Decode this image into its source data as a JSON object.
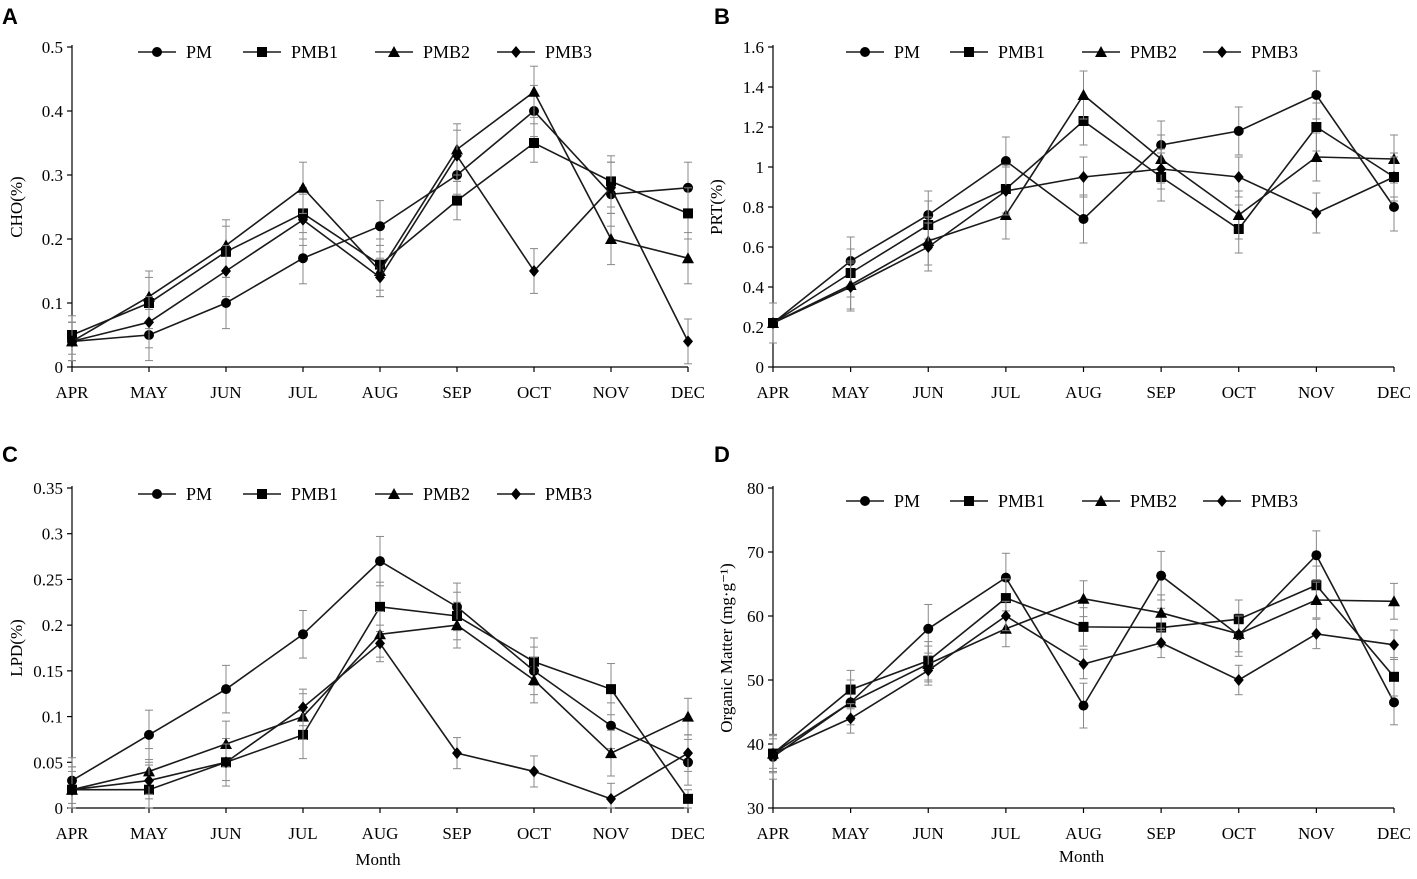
{
  "chart_data": [
    {
      "type": "line",
      "panel": "A",
      "title": "",
      "xlabel": "",
      "ylabel": "CHO(%)",
      "ylim": [
        0,
        0.5
      ],
      "yticks": [
        0,
        0.1,
        0.2,
        0.3,
        0.4,
        0.5
      ],
      "ytick_labels": [
        "0",
        "0.1",
        "0.2",
        "0.3",
        "0.4",
        "0.5"
      ],
      "categories": [
        "APR",
        "MAY",
        "JUN",
        "JUL",
        "AUG",
        "SEP",
        "OCT",
        "NOV",
        "DEC"
      ],
      "legend": "top",
      "series": [
        {
          "name": "PM",
          "marker": "circle",
          "values": [
            0.04,
            0.05,
            0.1,
            0.17,
            0.22,
            0.3,
            0.4,
            0.27,
            0.28
          ],
          "errors": [
            0.03,
            0.04,
            0.04,
            0.04,
            0.04,
            0.03,
            0.04,
            0.05,
            0.04
          ]
        },
        {
          "name": "PMB1",
          "marker": "square",
          "values": [
            0.05,
            0.1,
            0.18,
            0.24,
            0.16,
            0.26,
            0.35,
            0.29,
            0.24
          ],
          "errors": [
            0.03,
            0.04,
            0.04,
            0.04,
            0.04,
            0.03,
            0.03,
            0.04,
            0.04
          ]
        },
        {
          "name": "PMB2",
          "marker": "triangle",
          "values": [
            0.04,
            0.11,
            0.19,
            0.28,
            0.15,
            0.34,
            0.43,
            0.2,
            0.17
          ],
          "errors": [
            0.03,
            0.04,
            0.04,
            0.04,
            0.04,
            0.04,
            0.04,
            0.04,
            0.04
          ]
        },
        {
          "name": "PMB3",
          "marker": "diamond",
          "values": [
            0.04,
            0.07,
            0.15,
            0.23,
            0.14,
            0.33,
            0.15,
            0.28,
            0.04
          ],
          "errors": [
            0.03,
            0.04,
            0.04,
            0.04,
            0.03,
            0.04,
            0.035,
            0.04,
            0.035
          ]
        }
      ]
    },
    {
      "type": "line",
      "panel": "B",
      "title": "",
      "xlabel": "",
      "ylabel": "PRT(%)",
      "ylim": [
        0,
        1.6
      ],
      "yticks": [
        0,
        0.2,
        0.4,
        0.6,
        0.8,
        1.0,
        1.2,
        1.4,
        1.6
      ],
      "ytick_labels": [
        "0",
        "0.2",
        "0.4",
        "0.6",
        "0.8",
        "1",
        "1.2",
        "1.4",
        "1.6"
      ],
      "categories": [
        "APR",
        "MAY",
        "JUN",
        "JUL",
        "AUG",
        "SEP",
        "OCT",
        "NOV",
        "DEC"
      ],
      "legend": "top",
      "series": [
        {
          "name": "PM",
          "marker": "circle",
          "values": [
            0.22,
            0.53,
            0.76,
            1.03,
            0.74,
            1.11,
            1.18,
            1.36,
            0.8
          ],
          "errors": [
            0.1,
            0.12,
            0.12,
            0.12,
            0.12,
            0.12,
            0.12,
            0.12,
            0.12
          ]
        },
        {
          "name": "PMB1",
          "marker": "square",
          "values": [
            0.22,
            0.47,
            0.71,
            0.89,
            1.23,
            0.95,
            0.69,
            1.2,
            0.95
          ],
          "errors": [
            0.1,
            0.12,
            0.12,
            0.12,
            0.12,
            0.12,
            0.12,
            0.12,
            0.12
          ]
        },
        {
          "name": "PMB2",
          "marker": "triangle",
          "values": [
            0.22,
            0.41,
            0.63,
            0.76,
            1.36,
            1.04,
            0.76,
            1.05,
            1.04
          ],
          "errors": [
            0.1,
            0.12,
            0.12,
            0.12,
            0.12,
            0.12,
            0.12,
            0.12,
            0.12
          ]
        },
        {
          "name": "PMB3",
          "marker": "diamond",
          "values": [
            0.22,
            0.4,
            0.6,
            0.88,
            0.95,
            0.99,
            0.95,
            0.77,
            0.95
          ],
          "errors": [
            0.1,
            0.12,
            0.12,
            0.12,
            0.1,
            0.1,
            0.1,
            0.1,
            0.1
          ]
        }
      ]
    },
    {
      "type": "line",
      "panel": "C",
      "title": "",
      "xlabel": "Month",
      "ylabel": "LPD(%)",
      "ylim": [
        0,
        0.35
      ],
      "yticks": [
        0,
        0.05,
        0.1,
        0.15,
        0.2,
        0.25,
        0.3,
        0.35
      ],
      "ytick_labels": [
        "0",
        "0.05",
        "0.1",
        "0.15",
        "0.2",
        "0.25",
        "0.3",
        "0.35"
      ],
      "categories": [
        "APR",
        "MAY",
        "JUN",
        "JUL",
        "AUG",
        "SEP",
        "OCT",
        "NOV",
        "DEC"
      ],
      "legend": "top",
      "series": [
        {
          "name": "PM",
          "marker": "circle",
          "values": [
            0.03,
            0.08,
            0.13,
            0.19,
            0.27,
            0.22,
            0.15,
            0.09,
            0.05
          ],
          "errors": [
            0.025,
            0.027,
            0.026,
            0.026,
            0.027,
            0.026,
            0.026,
            0.025,
            0.025
          ]
        },
        {
          "name": "PMB1",
          "marker": "square",
          "values": [
            0.02,
            0.02,
            0.05,
            0.08,
            0.22,
            0.21,
            0.16,
            0.13,
            0.01
          ],
          "errors": [
            0.025,
            0.027,
            0.026,
            0.026,
            0.027,
            0.026,
            0.026,
            0.028,
            0.01
          ]
        },
        {
          "name": "PMB2",
          "marker": "triangle",
          "values": [
            0.02,
            0.04,
            0.07,
            0.1,
            0.19,
            0.2,
            0.14,
            0.06,
            0.1
          ],
          "errors": [
            0.025,
            0.025,
            0.025,
            0.025,
            0.025,
            0.025,
            0.025,
            0.025,
            0.02
          ]
        },
        {
          "name": "PMB3",
          "marker": "diamond",
          "values": [
            0.02,
            0.03,
            0.05,
            0.11,
            0.18,
            0.06,
            0.04,
            0.01,
            0.06
          ],
          "errors": [
            0.02,
            0.02,
            0.02,
            0.02,
            0.02,
            0.017,
            0.017,
            0.017,
            0.02
          ]
        }
      ]
    },
    {
      "type": "line",
      "panel": "D",
      "title": "",
      "xlabel": "Month",
      "ylabel": "Organic Matter (mg·g⁻¹)",
      "ylim": [
        30,
        80
      ],
      "yticks": [
        30,
        40,
        50,
        60,
        70,
        80
      ],
      "ytick_labels": [
        "30",
        "40",
        "50",
        "60",
        "70",
        "80"
      ],
      "categories": [
        "APR",
        "MAY",
        "JUN",
        "JUL",
        "AUG",
        "SEP",
        "OCT",
        "NOV",
        "DEC"
      ],
      "legend": "top",
      "series": [
        {
          "name": "PM",
          "marker": "circle",
          "values": [
            38,
            46.5,
            58,
            66,
            46,
            66.3,
            57,
            69.5,
            46.5
          ],
          "errors": [
            3.5,
            3.5,
            3.8,
            3.8,
            3.5,
            3.8,
            3.3,
            3.8,
            3.5
          ]
        },
        {
          "name": "PMB1",
          "marker": "square",
          "values": [
            38.5,
            48.5,
            53,
            62.8,
            58.3,
            58.2,
            59.5,
            64.8,
            50.5
          ],
          "errors": [
            3,
            3,
            3,
            3,
            3,
            3,
            3,
            3,
            3
          ]
        },
        {
          "name": "PMB2",
          "marker": "triangle",
          "values": [
            38.5,
            46.5,
            52.5,
            58,
            62.7,
            60.5,
            57.2,
            62.5,
            62.3
          ],
          "errors": [
            2.8,
            2.8,
            2.8,
            2.8,
            2.8,
            2.8,
            2.8,
            2.8,
            2.8
          ]
        },
        {
          "name": "PMB3",
          "marker": "diamond",
          "values": [
            38.5,
            44,
            51.5,
            60,
            52.5,
            55.8,
            50,
            57.2,
            55.5
          ],
          "errors": [
            2.3,
            2.3,
            2.3,
            2.3,
            2.3,
            2.3,
            2.3,
            2.3,
            2.3
          ]
        }
      ]
    }
  ]
}
